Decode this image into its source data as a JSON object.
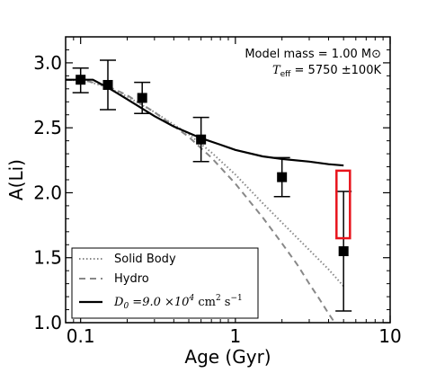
{
  "chart_data": {
    "type": "scatter",
    "xlabel": "Age (Gyr)",
    "ylabel": "A(Li)",
    "xscale": "log",
    "xlim": [
      0.08,
      10
    ],
    "ylim": [
      1.0,
      3.2
    ],
    "xticks": [
      {
        "value": 0.1,
        "label": "0.1"
      },
      {
        "value": 1,
        "label": "1"
      },
      {
        "value": 10,
        "label": "10"
      }
    ],
    "yticks": [
      {
        "value": 1.0,
        "label": "1.0"
      },
      {
        "value": 1.5,
        "label": "1.5"
      },
      {
        "value": 2.0,
        "label": "2.0"
      },
      {
        "value": 2.5,
        "label": "2.5"
      },
      {
        "value": 3.0,
        "label": "3.0"
      }
    ],
    "grid": false,
    "legend_position": "bottom-left",
    "annotations": {
      "mass_line": "Model mass = 1.00 M⊙",
      "teff_symbol": "T",
      "teff_sub": "eff",
      "teff_value": " = 5750 ±100K"
    },
    "observations": {
      "name": "",
      "marker": "square",
      "color": "#000000",
      "points": [
        {
          "x": 0.1,
          "y": 2.87,
          "err_low": 0.1,
          "err_high": 0.09
        },
        {
          "x": 0.15,
          "y": 2.83,
          "err_low": 0.19,
          "err_high": 0.19
        },
        {
          "x": 0.25,
          "y": 2.73,
          "err_low": 0.12,
          "err_high": 0.12
        },
        {
          "x": 0.6,
          "y": 2.41,
          "err_low": 0.17,
          "err_high": 0.17
        },
        {
          "x": 2.0,
          "y": 2.12,
          "err_low": 0.15,
          "err_high": 0.15
        },
        {
          "x": 5.0,
          "y": 1.55,
          "err_low": 0.46,
          "err_high": 0.46
        }
      ]
    },
    "highlight_box": {
      "x0": 4.5,
      "x1": 5.5,
      "y0": 1.65,
      "y1": 2.17,
      "color": "#e8141c"
    },
    "series": [
      {
        "name": "Solid Body",
        "style": "dotted",
        "color": "#888888",
        "x": [
          0.08,
          0.11,
          0.15,
          0.2,
          0.3,
          0.5,
          0.7,
          1.0,
          1.5,
          2.0,
          3.0,
          4.0,
          5.0
        ],
        "y": [
          2.87,
          2.86,
          2.81,
          2.74,
          2.62,
          2.45,
          2.31,
          2.14,
          1.92,
          1.77,
          1.56,
          1.41,
          1.28
        ]
      },
      {
        "name": "Hydro",
        "style": "dashed",
        "color": "#888888",
        "x": [
          0.08,
          0.11,
          0.15,
          0.2,
          0.3,
          0.5,
          0.7,
          1.0,
          1.5,
          2.0,
          2.5,
          3.0,
          3.5,
          4.0,
          4.5
        ],
        "y": [
          2.87,
          2.86,
          2.82,
          2.75,
          2.62,
          2.43,
          2.27,
          2.07,
          1.81,
          1.61,
          1.45,
          1.3,
          1.18,
          1.07,
          0.98
        ]
      },
      {
        "name_symbol": "D",
        "name_sub": "0",
        "name_rest": " =9.0 ×10",
        "name_exp": "4",
        "name_units": " cm",
        "name_units_exp": "2",
        "name_units_tail": "  s",
        "name_units_tail_exp": "−1",
        "style": "solid",
        "color": "#000000",
        "x": [
          0.08,
          0.12,
          0.15,
          0.2,
          0.3,
          0.4,
          0.6,
          0.8,
          1.0,
          1.5,
          2.0,
          3.0,
          4.0,
          5.0
        ],
        "y": [
          2.87,
          2.87,
          2.81,
          2.72,
          2.59,
          2.51,
          2.42,
          2.37,
          2.33,
          2.28,
          2.26,
          2.24,
          2.22,
          2.21
        ]
      }
    ]
  }
}
